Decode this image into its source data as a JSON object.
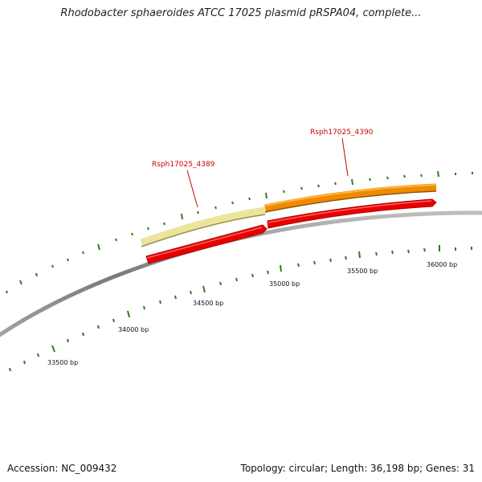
{
  "title": "Rhodobacter sphaeroides ATCC 17025 plasmid pRSPA04, complete...",
  "footer": {
    "accession": "Accession: NC_009432",
    "summary": "Topology: circular; Length: 36,198 bp; Genes: 31"
  },
  "colors": {
    "backbone": "#8a8a8a",
    "tick": "#2e7d1e",
    "gene_red": "#e80000",
    "gene_orange": "#f08a00",
    "gene_pale": "#ece49a",
    "label": "#cc0000"
  },
  "scale_labels": [
    "33500 bp",
    "34000 bp",
    "34500 bp",
    "35000 bp",
    "35500 bp",
    "36000 bp"
  ],
  "genes": [
    {
      "label": "Rsph17025_4389"
    },
    {
      "label": "Rsph17025_4390"
    }
  ]
}
